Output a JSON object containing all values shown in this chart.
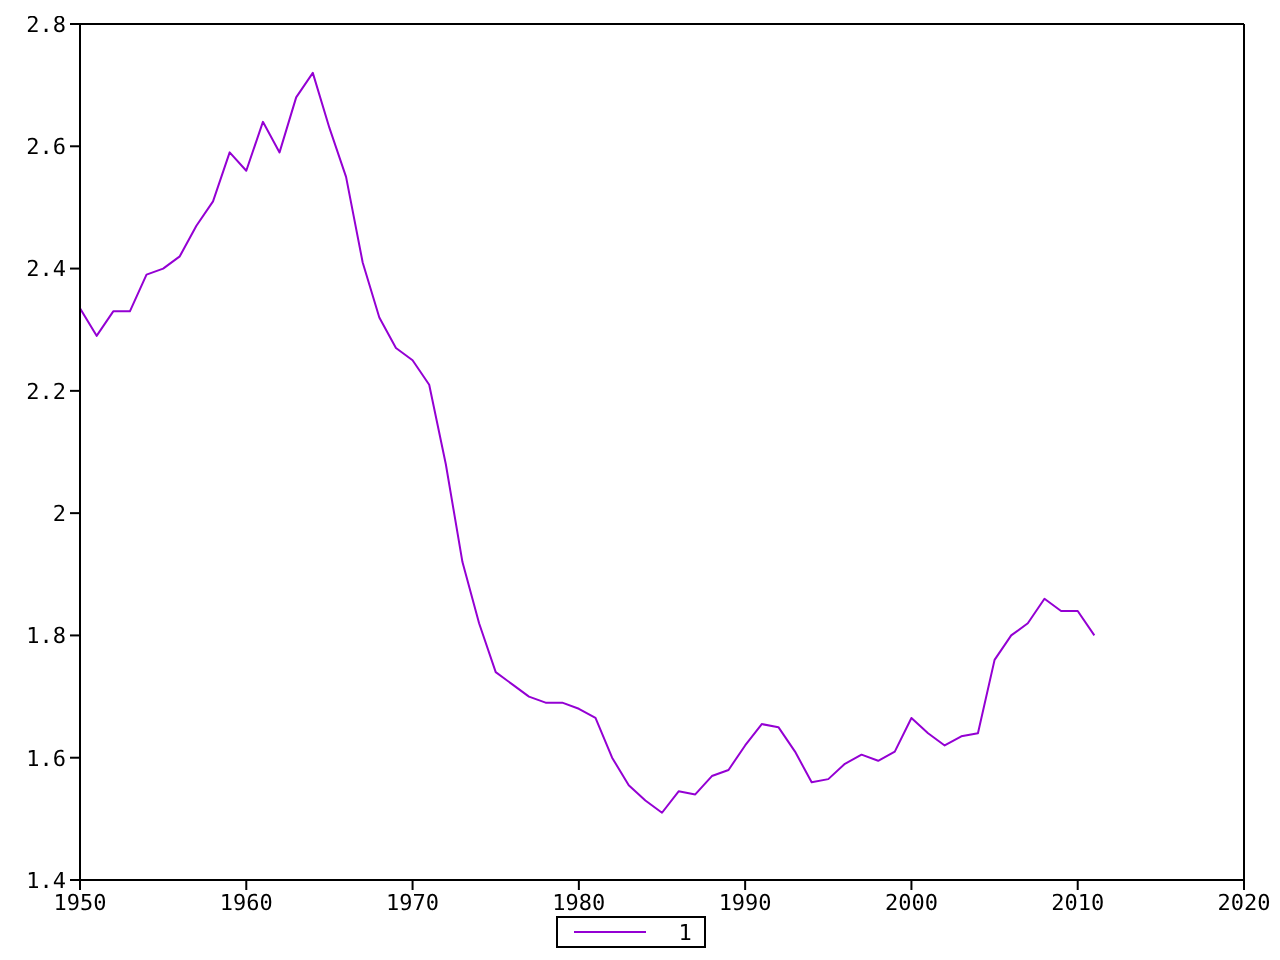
{
  "chart_data": {
    "type": "line",
    "x": [
      1950,
      1951,
      1952,
      1953,
      1954,
      1955,
      1956,
      1957,
      1958,
      1959,
      1960,
      1961,
      1962,
      1963,
      1964,
      1965,
      1966,
      1967,
      1968,
      1969,
      1970,
      1971,
      1972,
      1973,
      1974,
      1975,
      1976,
      1977,
      1978,
      1979,
      1980,
      1981,
      1982,
      1983,
      1984,
      1985,
      1986,
      1987,
      1988,
      1989,
      1990,
      1991,
      1992,
      1993,
      1994,
      1995,
      1996,
      1997,
      1998,
      1999,
      2000,
      2001,
      2002,
      2003,
      2004,
      2005,
      2006,
      2007,
      2008,
      2009,
      2010,
      2011
    ],
    "series": [
      {
        "name": "1",
        "color": "#9400d3",
        "values": [
          2.335,
          2.29,
          2.33,
          2.33,
          2.39,
          2.4,
          2.42,
          2.47,
          2.51,
          2.59,
          2.56,
          2.64,
          2.59,
          2.68,
          2.72,
          2.63,
          2.55,
          2.41,
          2.32,
          2.27,
          2.25,
          2.21,
          2.08,
          1.92,
          1.82,
          1.74,
          1.72,
          1.7,
          1.69,
          1.69,
          1.68,
          1.665,
          1.6,
          1.555,
          1.53,
          1.51,
          1.545,
          1.54,
          1.57,
          1.58,
          1.62,
          1.655,
          1.65,
          1.61,
          1.56,
          1.565,
          1.59,
          1.605,
          1.595,
          1.61,
          1.665,
          1.64,
          1.62,
          1.635,
          1.64,
          1.76,
          1.8,
          1.82,
          1.86,
          1.84,
          1.84,
          1.8
        ]
      }
    ],
    "xlim": [
      1950,
      2020
    ],
    "xticks": [
      1950,
      1960,
      1970,
      1980,
      1990,
      2000,
      2010,
      2020
    ],
    "ylim": [
      1.4,
      2.8
    ],
    "yticks": [
      1.4,
      1.6,
      1.8,
      2,
      2.2,
      2.4,
      2.6,
      2.8
    ],
    "legend": "bottom",
    "marker": "none",
    "line_style": "solid"
  }
}
